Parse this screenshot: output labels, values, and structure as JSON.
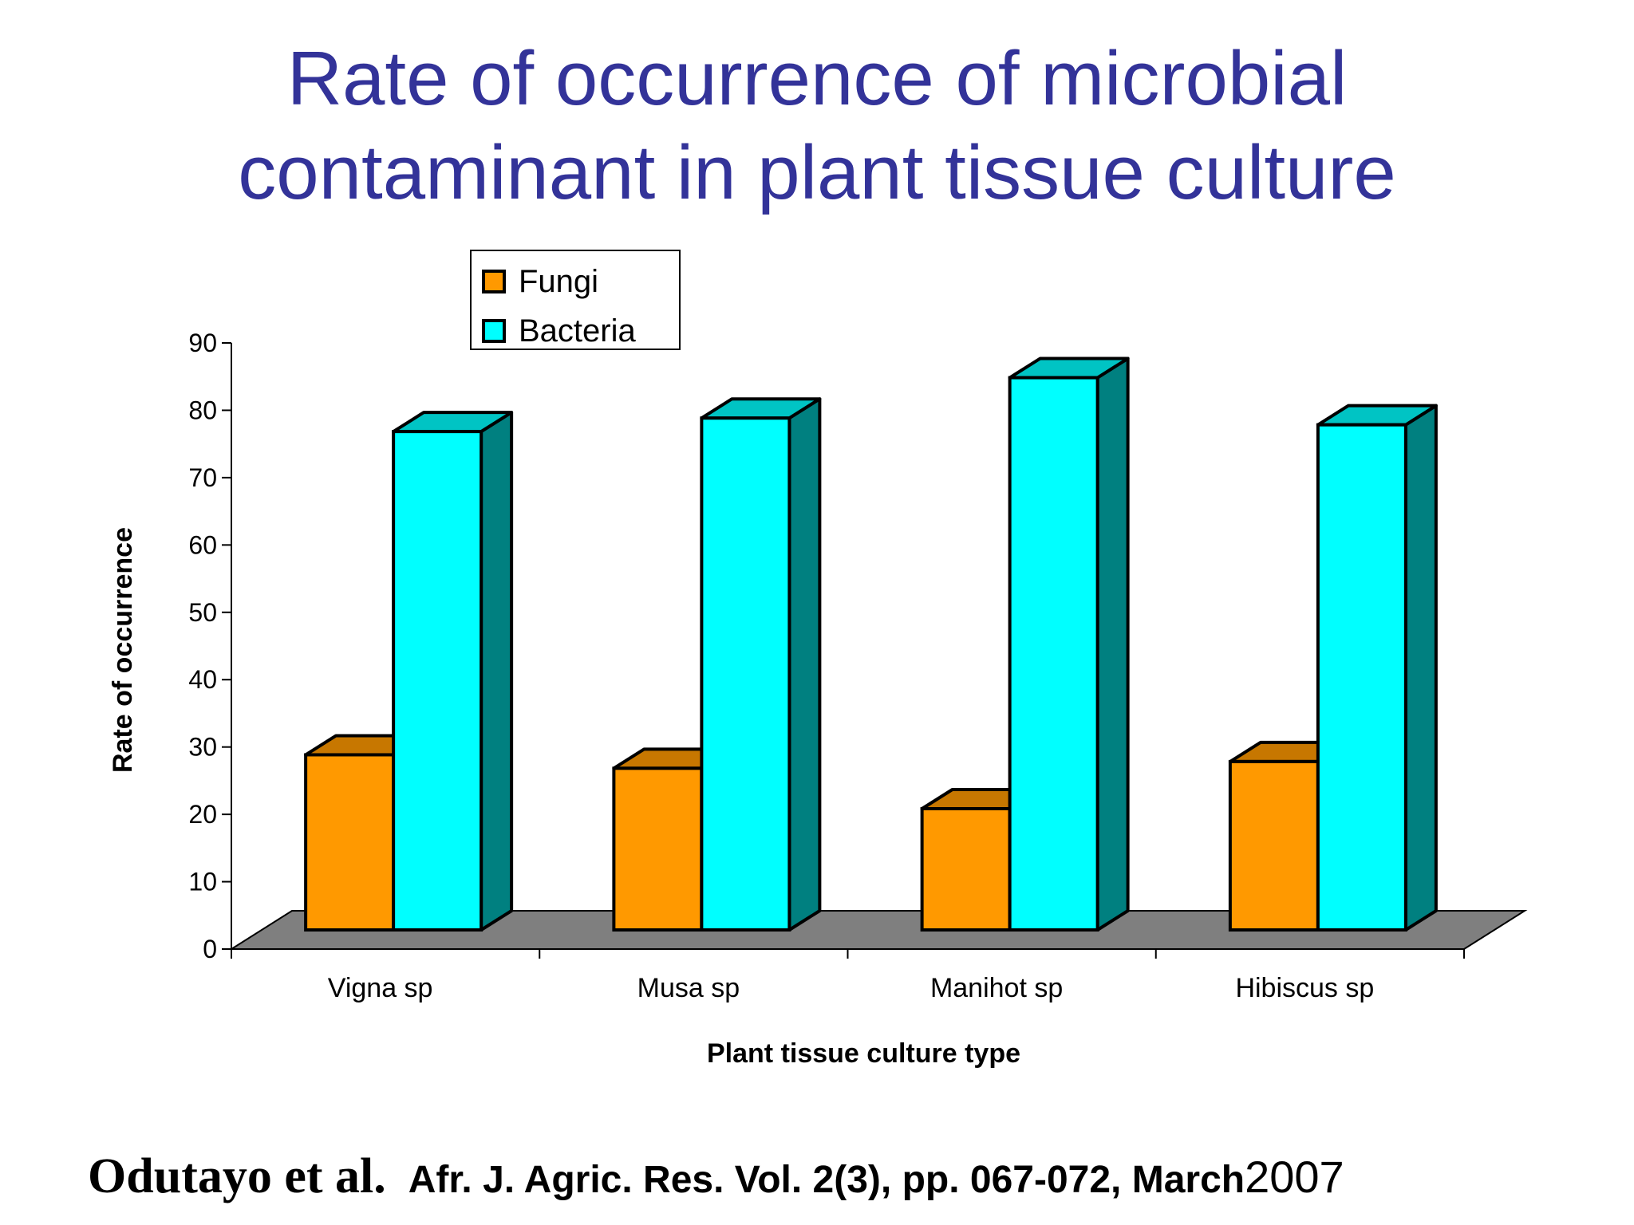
{
  "slide": {
    "title_line1": "Rate of occurrence of microbial",
    "title_line2": "contaminant in plant tissue culture"
  },
  "citation": {
    "authors": "Odutayo et al.",
    "journal": "Afr. J. Agric. Res. Vol. 2(3), pp. 067-072, March",
    "year": "2007"
  },
  "chart_data": {
    "type": "bar",
    "style": "3d-clustered-column",
    "title": "",
    "xlabel": "Plant tissue culture type",
    "ylabel": "Rate of occurrence",
    "ylim": [
      0,
      90
    ],
    "yticks": [
      0,
      10,
      20,
      30,
      40,
      50,
      60,
      70,
      80,
      90
    ],
    "grid": false,
    "legend_position": "top-left",
    "categories": [
      "Vigna sp",
      "Musa sp",
      "Manihot sp",
      "Hibiscus sp"
    ],
    "series": [
      {
        "name": "Fungi",
        "values": [
          26,
          24,
          18,
          25
        ],
        "color": "#ff9900",
        "top_color": "#c77700",
        "side_color": "#996600"
      },
      {
        "name": "Bacteria",
        "values": [
          74,
          76,
          82,
          75
        ],
        "color": "#00ffff",
        "top_color": "#00c4c4",
        "side_color": "#008080"
      }
    ],
    "floor_color": "#7f7f7f"
  }
}
